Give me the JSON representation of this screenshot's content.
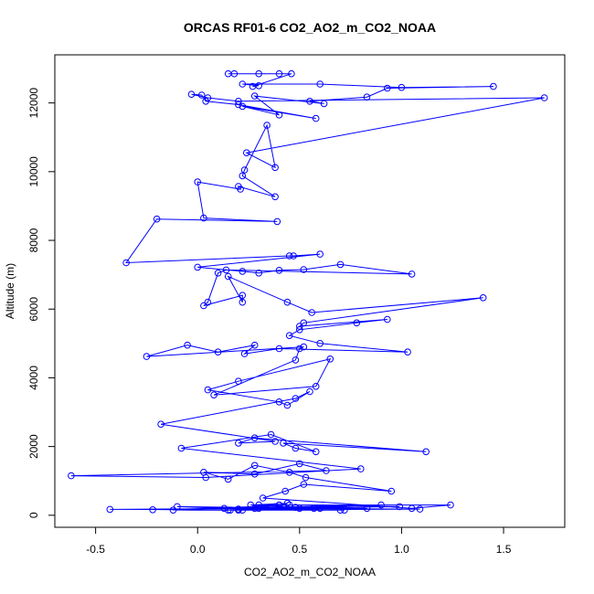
{
  "chart_data": {
    "type": "line",
    "title": "ORCAS RF01-6 CO2_AO2_m_CO2_NOAA",
    "xlabel": "CO2_AO2_m_CO2_NOAA",
    "ylabel": "Altitude (m)",
    "xlim": [
      -0.7,
      1.8
    ],
    "ylim": [
      -350,
      13400
    ],
    "xticks": [
      -0.5,
      0.0,
      0.5,
      1.0,
      1.5
    ],
    "xtick_labels": [
      "-0.5",
      "0.0",
      "0.5",
      "1.0",
      "1.5"
    ],
    "yticks": [
      0,
      2000,
      4000,
      6000,
      8000,
      10000,
      12000
    ],
    "ytick_labels": [
      "0",
      "2000",
      "4000",
      "6000",
      "8000",
      "10000",
      "12000"
    ],
    "grid": false,
    "markers": "open-circle",
    "color": "#0000ff",
    "series": [
      {
        "x": [
          0.15,
          0.18,
          0.3,
          0.4,
          0.46,
          0.27,
          0.3,
          0.22,
          0.6,
          1.0,
          1.45,
          0.93,
          0.83,
          0.55,
          0.62,
          0.28,
          0.4,
          0.22,
          0.58,
          0.2,
          0.04,
          0.02,
          -0.03,
          0.05,
          0.2,
          1.7,
          0.24,
          0.38,
          0.34,
          0.23,
          0.22,
          0.38,
          0.2,
          0.21,
          0.0,
          0.03,
          0.39,
          -0.2,
          -0.35,
          0.45,
          0.47,
          0.6,
          0.0,
          0.22,
          0.3,
          0.4,
          0.52,
          0.7,
          1.05,
          0.14,
          0.1,
          0.05,
          0.03,
          0.22,
          0.22,
          0.15,
          0.44,
          0.56,
          1.4,
          0.52,
          0.5,
          0.93,
          0.78,
          0.5,
          0.45,
          0.6,
          1.03,
          0.4,
          0.23,
          0.28,
          0.1,
          -0.05,
          -0.25,
          0.52,
          0.5,
          0.48,
          0.08,
          0.58,
          0.65,
          0.2,
          0.05,
          0.4,
          0.44,
          0.55,
          0.48,
          -0.18,
          0.38,
          0.2,
          0.28,
          1.12,
          0.42,
          0.48,
          0.58,
          0.36,
          -0.08,
          0.8,
          0.04,
          -0.62,
          0.63,
          0.5,
          0.28,
          0.03,
          0.15,
          0.28,
          0.45,
          0.53,
          0.95,
          0.52,
          0.43,
          0.32,
          1.05,
          1.24,
          0.26,
          0.44,
          0.38,
          0.83,
          0.5,
          0.2,
          0.9,
          0.13,
          -0.1,
          0.57,
          0.2,
          0.7,
          -0.12,
          0.45,
          0.99,
          0.28,
          0.72,
          -0.43,
          0.3,
          1.09,
          0.22,
          0.3,
          0.42,
          -0.22,
          0.15,
          0.48,
          0.6,
          0.16,
          0.4
        ],
        "y": [
          12850,
          12850,
          12850,
          12850,
          12850,
          12480,
          12500,
          12550,
          12550,
          12450,
          12480,
          12430,
          12170,
          12050,
          11980,
          12200,
          11650,
          11900,
          11550,
          11950,
          12050,
          12230,
          12250,
          12150,
          12050,
          12150,
          10550,
          10120,
          11350,
          10050,
          9880,
          9270,
          9570,
          9490,
          9700,
          8650,
          8550,
          8620,
          7350,
          7550,
          7550,
          7600,
          7220,
          7100,
          7050,
          7130,
          7150,
          7300,
          7020,
          7140,
          7050,
          6200,
          6100,
          6400,
          6200,
          6950,
          6200,
          5900,
          6330,
          5600,
          5500,
          5700,
          5600,
          5400,
          5230,
          5000,
          4750,
          4850,
          4700,
          4950,
          4750,
          4950,
          4620,
          4900,
          4850,
          4520,
          3500,
          3750,
          4550,
          3900,
          3650,
          3300,
          3200,
          3600,
          3400,
          2650,
          2150,
          2100,
          2250,
          1850,
          2100,
          1950,
          1850,
          2350,
          1950,
          1350,
          1100,
          1150,
          1300,
          1500,
          1200,
          1250,
          1050,
          1450,
          1250,
          1100,
          700,
          900,
          700,
          500,
          200,
          300,
          300,
          350,
          250,
          200,
          200,
          150,
          300,
          200,
          250,
          200,
          180,
          150,
          150,
          300,
          250,
          200,
          150,
          170,
          200,
          180,
          150,
          300,
          250,
          160,
          150,
          230,
          200,
          150,
          300
        ]
      }
    ]
  }
}
